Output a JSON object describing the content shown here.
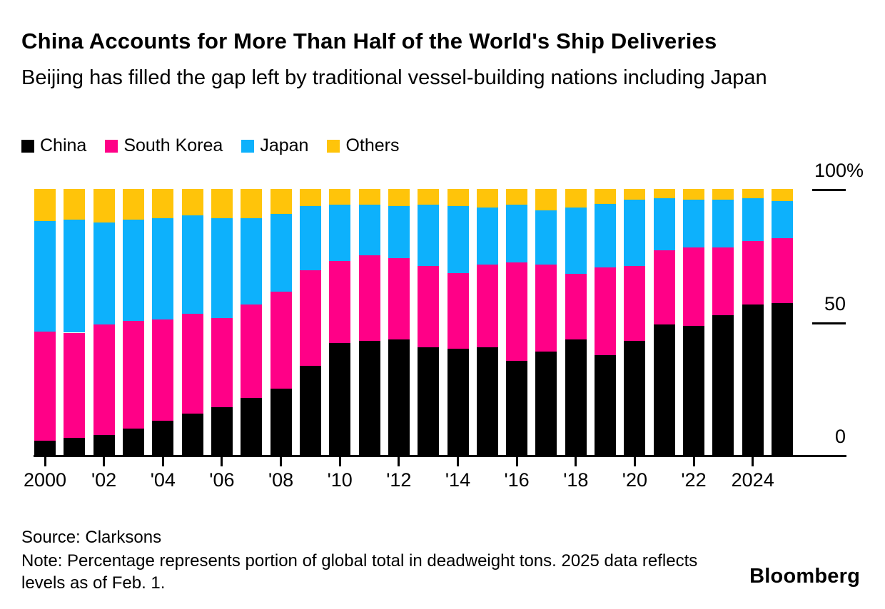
{
  "header": {
    "title": "China Accounts for More Than Half of the World's Ship Deliveries",
    "subtitle": "Beijing has filled the gap left by traditional vessel-building nations including Japan"
  },
  "legend": [
    {
      "label": "China",
      "color": "#000000"
    },
    {
      "label": "South Korea",
      "color": "#ff0087"
    },
    {
      "label": "Japan",
      "color": "#0db1fc"
    },
    {
      "label": "Others",
      "color": "#ffc40a"
    }
  ],
  "chart_data": {
    "type": "bar",
    "stacked": true,
    "unit": "percent",
    "title": "China Accounts for More Than Half of the World's Ship Deliveries",
    "x": [
      2000,
      2001,
      2002,
      2003,
      2004,
      2005,
      2006,
      2007,
      2008,
      2009,
      2010,
      2011,
      2012,
      2013,
      2014,
      2015,
      2016,
      2017,
      2018,
      2019,
      2020,
      2021,
      2022,
      2023,
      2024,
      2025
    ],
    "series": [
      {
        "name": "China",
        "color": "#000000",
        "values": [
          5.5,
          6.5,
          7.5,
          10,
          13,
          15.5,
          18,
          21.5,
          25,
          33.5,
          42,
          43,
          43.5,
          40.5,
          40,
          40.5,
          35.5,
          39,
          43.5,
          37.5,
          43,
          49,
          48.5,
          52.5,
          56.5,
          57
        ]
      },
      {
        "name": "South Korea",
        "color": "#ff0087",
        "values": [
          41,
          39.5,
          41.5,
          40.5,
          38,
          37.5,
          33.5,
          35,
          36.5,
          36,
          31,
          32,
          30.5,
          30.5,
          28.5,
          31,
          37,
          32.5,
          24.5,
          33,
          28,
          28,
          29.5,
          25.5,
          24,
          24.5
        ]
      },
      {
        "name": "Japan",
        "color": "#0db1fc",
        "values": [
          41.5,
          42.5,
          38.5,
          38,
          38,
          37,
          37.5,
          32.5,
          29,
          24,
          21,
          19,
          19.5,
          23,
          25,
          21.5,
          21.5,
          20.5,
          25,
          24,
          25,
          19.5,
          18,
          18,
          16,
          14
        ]
      },
      {
        "name": "Others",
        "color": "#ffc40a",
        "values": [
          12,
          11.5,
          12.5,
          11.5,
          11,
          10,
          11,
          11,
          9.5,
          6.5,
          6,
          6,
          6.5,
          6,
          6.5,
          7,
          6,
          8,
          7,
          5.5,
          4,
          3.5,
          4,
          4,
          3.5,
          4.5
        ]
      }
    ],
    "x_ticks": [
      {
        "year": 2000,
        "label": "2000"
      },
      {
        "year": 2002,
        "label": "'02"
      },
      {
        "year": 2004,
        "label": "'04"
      },
      {
        "year": 2006,
        "label": "'06"
      },
      {
        "year": 2008,
        "label": "'08"
      },
      {
        "year": 2010,
        "label": "'10"
      },
      {
        "year": 2012,
        "label": "'12"
      },
      {
        "year": 2014,
        "label": "'14"
      },
      {
        "year": 2016,
        "label": "'16"
      },
      {
        "year": 2018,
        "label": "'18"
      },
      {
        "year": 2020,
        "label": "'20"
      },
      {
        "year": 2022,
        "label": "'22"
      },
      {
        "year": 2024,
        "label": "2024"
      }
    ],
    "y_ticks": [
      {
        "value": 100,
        "label": "100%"
      },
      {
        "value": 50,
        "label": "50"
      },
      {
        "value": 0,
        "label": "0"
      }
    ],
    "ylim": [
      0,
      100
    ],
    "grid": false,
    "legend_position": "top-left"
  },
  "footer": {
    "source": "Source: Clarksons",
    "note": "Note: Percentage represents portion of global total in deadweight tons. 2025 data reflects levels as of Feb. 1.",
    "brand": "Bloomberg"
  }
}
